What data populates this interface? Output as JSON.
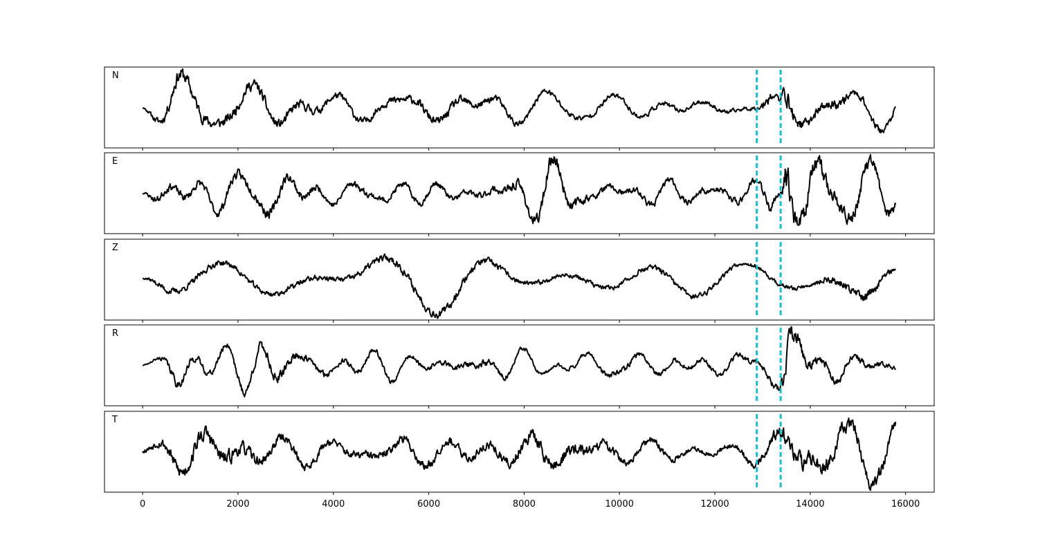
{
  "chart_data": {
    "type": "line",
    "xlim": [
      -800,
      16600
    ],
    "x_ticks": [
      "0",
      "2000",
      "4000",
      "6000",
      "8000",
      "10000",
      "12000",
      "14000",
      "16000"
    ],
    "x_tick_values": [
      0,
      2000,
      4000,
      6000,
      8000,
      10000,
      12000,
      14000,
      16000
    ],
    "trace_x_range": [
      0,
      15800
    ],
    "markers": [
      12880,
      13380
    ],
    "marker_color": "#17becf",
    "trace_color": "#000000",
    "grid": false,
    "panels": [
      {
        "label": "N",
        "ylim": [
          -1.05,
          1.05
        ]
      },
      {
        "label": "E",
        "ylim": [
          -1.05,
          1.05
        ]
      },
      {
        "label": "Z",
        "ylim": [
          -1.05,
          1.05
        ]
      },
      {
        "label": "R",
        "ylim": [
          -1.05,
          1.05
        ]
      },
      {
        "label": "T",
        "ylim": [
          -1.05,
          1.05
        ]
      }
    ]
  }
}
